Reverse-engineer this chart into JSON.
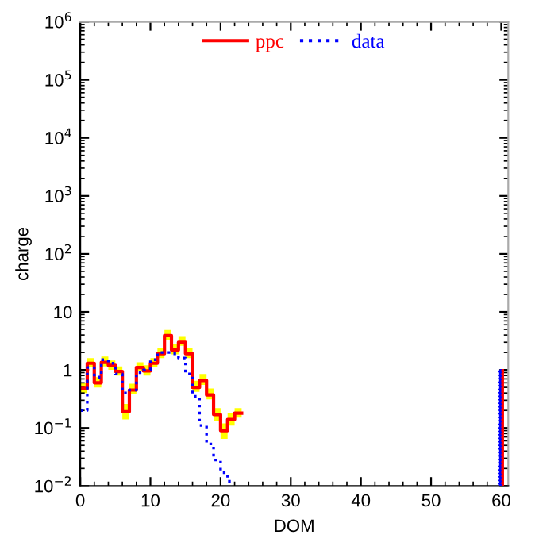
{
  "chart_data": {
    "type": "step",
    "xlabel": "DOM",
    "ylabel": "charge",
    "series": [
      {
        "name": "ppc",
        "color": "#ff0000",
        "line_style": "solid",
        "x": [
          0,
          1,
          2,
          3,
          4,
          5,
          6,
          7,
          8,
          9,
          10,
          11,
          12,
          13,
          14,
          15,
          16,
          17,
          18,
          19,
          20,
          21,
          22,
          23
        ],
        "values": [
          0.48,
          1.3,
          0.6,
          1.35,
          1.2,
          0.94,
          0.19,
          0.45,
          1.1,
          0.96,
          1.3,
          1.9,
          3.9,
          2.2,
          3.0,
          1.9,
          0.5,
          0.66,
          0.37,
          0.17,
          0.09,
          0.14,
          0.18,
          0.18
        ],
        "upper": [
          0.6,
          1.6,
          0.75,
          1.7,
          1.45,
          1.15,
          0.26,
          0.58,
          1.35,
          1.2,
          1.6,
          2.4,
          4.9,
          2.8,
          3.7,
          2.4,
          0.65,
          0.85,
          0.48,
          0.22,
          0.12,
          0.18,
          0.22,
          0.22
        ],
        "lower": [
          0.4,
          1.1,
          0.5,
          1.15,
          1.0,
          0.8,
          0.14,
          0.38,
          0.95,
          0.8,
          1.1,
          1.6,
          3.3,
          1.85,
          2.6,
          1.6,
          0.42,
          0.55,
          0.31,
          0.13,
          0.065,
          0.11,
          0.15,
          0.15
        ]
      },
      {
        "name": "data",
        "color": "#0000ff",
        "line_style": "dotted",
        "x": [
          0,
          1,
          2,
          3,
          4,
          5,
          6,
          7,
          8,
          9,
          10,
          11,
          12,
          13,
          14,
          15,
          16,
          17,
          18,
          19,
          20,
          21,
          22
        ],
        "values": [
          0.2,
          1.1,
          0.75,
          1.5,
          1.3,
          0.85,
          0.4,
          0.45,
          0.9,
          1.0,
          1.5,
          2.0,
          2.0,
          1.9,
          1.6,
          0.85,
          0.35,
          0.11,
          0.053,
          0.028,
          0.017,
          0.012,
          0.012
        ]
      },
      {
        "type": "bar",
        "color": "#ff0000",
        "line_style": "solid",
        "x": [
          60
        ],
        "values": [
          1
        ]
      },
      {
        "type": "bar",
        "color": "#0000ff",
        "line_style": "dotted",
        "x": [
          60
        ],
        "values": [
          1
        ]
      }
    ],
    "log": "y",
    "xlim": [
      0,
      61
    ],
    "ylim": [
      0.01,
      1000000
    ],
    "xticks": [
      0,
      10,
      20,
      30,
      40,
      50,
      60
    ],
    "yticks": [
      {
        "value": 0.01,
        "label": "10$^{−2}$"
      },
      {
        "value": 0.1,
        "label": "10$^{−1}$"
      },
      1,
      10,
      {
        "value": 100,
        "label": "10$^{2}$"
      },
      {
        "value": 1000,
        "label": "10$^{3}$"
      },
      {
        "value": 10000,
        "label": "10$^{4}$"
      },
      {
        "value": 100000,
        "label": "10$^{5}$"
      },
      {
        "value": 1000000,
        "label": "10$^{6}$"
      }
    ],
    "legend": "top",
    "grid": false
  }
}
